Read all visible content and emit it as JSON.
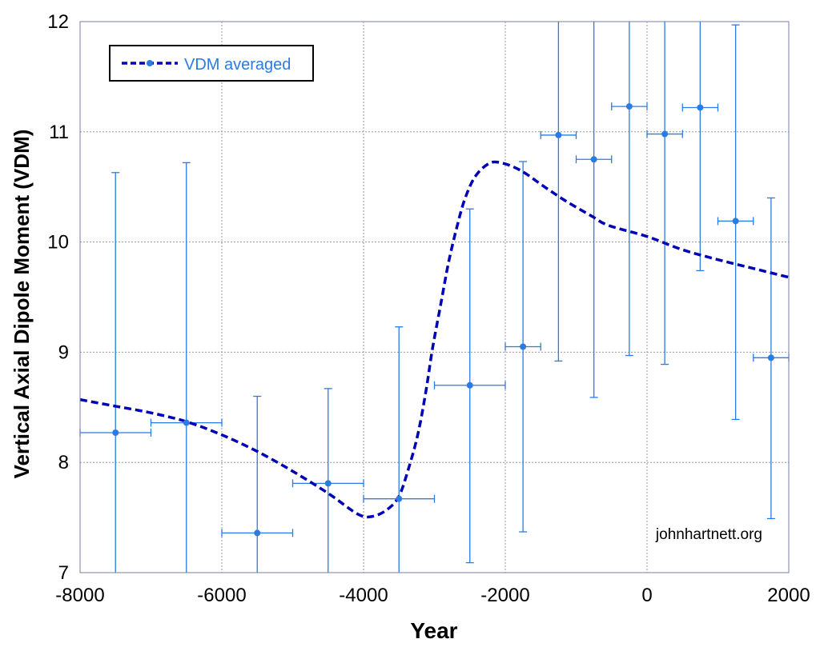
{
  "chart_data": {
    "type": "scatter",
    "title": "",
    "xlabel": "Year",
    "ylabel": "Vertical Axial Dipole Moment (VDM)",
    "xlim": [
      -8000,
      2000
    ],
    "ylim": [
      7,
      12
    ],
    "xticks": [
      -8000,
      -6000,
      -4000,
      -2000,
      0,
      2000
    ],
    "yticks": [
      7,
      8,
      9,
      10,
      11,
      12
    ],
    "xtick_labels": [
      "-8000",
      "-6000",
      "-4000",
      "-2000",
      "0",
      "2000"
    ],
    "ytick_labels": [
      "7",
      "8",
      "9",
      "10",
      "11",
      "12"
    ],
    "grid": true,
    "legend": {
      "position": "top-left",
      "entries": [
        "VDM averaged"
      ]
    },
    "watermark": "johnhartnett.org",
    "colors": {
      "points": "#2a7be4",
      "curve": "#0000b4",
      "grid": "#999999"
    },
    "points": [
      {
        "x": -7500,
        "y": 8.27,
        "ylow": 7.0,
        "yhigh": 10.63,
        "xlow": -8000,
        "xhigh": -7000
      },
      {
        "x": -6500,
        "y": 8.36,
        "ylow": 7.0,
        "yhigh": 10.72,
        "xlow": -7000,
        "xhigh": -6000
      },
      {
        "x": -5500,
        "y": 7.36,
        "ylow": 7.0,
        "yhigh": 8.6,
        "xlow": -6000,
        "xhigh": -5000
      },
      {
        "x": -4500,
        "y": 7.81,
        "ylow": 7.0,
        "yhigh": 8.67,
        "xlow": -5000,
        "xhigh": -4000
      },
      {
        "x": -3500,
        "y": 7.67,
        "ylow": 7.0,
        "yhigh": 9.23,
        "xlow": -4000,
        "xhigh": -3000
      },
      {
        "x": -2500,
        "y": 8.7,
        "ylow": 7.09,
        "yhigh": 10.3,
        "xlow": -3000,
        "xhigh": -2000
      },
      {
        "x": -1750,
        "y": 9.05,
        "ylow": 7.37,
        "yhigh": 10.73,
        "xlow": -2000,
        "xhigh": -1500
      },
      {
        "x": -1250,
        "y": 10.97,
        "ylow": 8.92,
        "yhigh": 12.0,
        "xlow": -1500,
        "xhigh": -1000
      },
      {
        "x": -750,
        "y": 10.75,
        "ylow": 8.59,
        "yhigh": 12.0,
        "xlow": -1000,
        "xhigh": -500
      },
      {
        "x": -250,
        "y": 11.23,
        "ylow": 8.97,
        "yhigh": 12.0,
        "xlow": -500,
        "xhigh": 0
      },
      {
        "x": 250,
        "y": 10.98,
        "ylow": 8.89,
        "yhigh": 12.0,
        "xlow": 0,
        "xhigh": 500
      },
      {
        "x": 750,
        "y": 11.22,
        "ylow": 9.74,
        "yhigh": 12.0,
        "xlow": 500,
        "xhigh": 1000
      },
      {
        "x": 1250,
        "y": 10.19,
        "ylow": 8.39,
        "yhigh": 11.97,
        "xlow": 1000,
        "xhigh": 1500
      },
      {
        "x": 1750,
        "y": 8.95,
        "ylow": 7.49,
        "yhigh": 10.4,
        "xlow": 1500,
        "xhigh": 2000
      }
    ],
    "series": [
      {
        "name": "VDM averaged",
        "style": "dashed",
        "x": [
          -8000,
          -7500,
          -7000,
          -6500,
          -6000,
          -5500,
          -5000,
          -4500,
          -4079,
          -3876,
          -3672,
          -3503,
          -3367,
          -3232,
          -3119,
          -3028,
          -2915,
          -2802,
          -2689,
          -2576,
          -2429,
          -2237,
          -2068,
          -1785,
          -1446,
          -1141,
          -768,
          -542,
          0,
          500,
          1000,
          1500,
          2000
        ],
        "y": [
          8.57,
          8.51,
          8.45,
          8.37,
          8.25,
          8.1,
          7.92,
          7.72,
          7.53,
          7.51,
          7.57,
          7.69,
          7.94,
          8.26,
          8.65,
          9.03,
          9.42,
          9.81,
          10.12,
          10.38,
          10.59,
          10.71,
          10.72,
          10.65,
          10.5,
          10.37,
          10.23,
          10.15,
          10.05,
          9.93,
          9.84,
          9.76,
          9.68
        ]
      }
    ]
  }
}
